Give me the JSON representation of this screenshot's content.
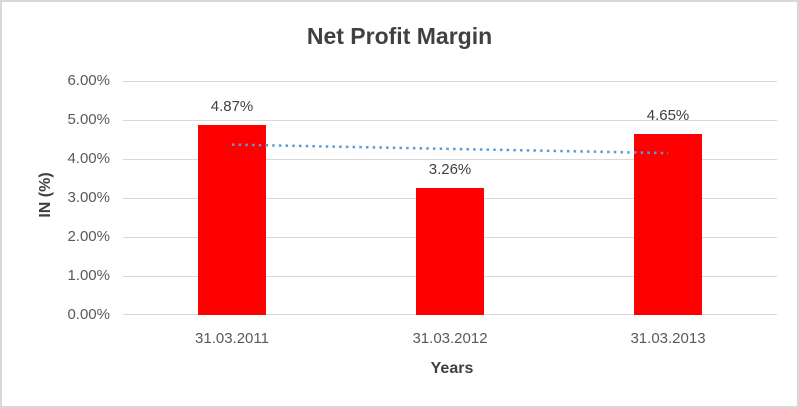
{
  "chart_data": {
    "type": "bar",
    "title": "Net Profit Margin",
    "categories": [
      "31.03.2011",
      "31.03.2012",
      "31.03.2013"
    ],
    "values": [
      4.87,
      3.26,
      4.65
    ],
    "value_labels": [
      "4.87%",
      "3.26%",
      "4.65%"
    ],
    "xlabel": "Years",
    "ylabel": "IN (%)",
    "ylim": [
      0,
      6
    ],
    "ytick_step": 1,
    "ytick_labels": [
      "6.00%",
      "5.00%",
      "4.00%",
      "3.00%",
      "2.00%",
      "1.00%",
      "0.00%"
    ],
    "grid": true,
    "legend": false,
    "bar_color": "#FF0000",
    "gridline_color": "#D9D9D9",
    "tick_text_color": "#595959",
    "title_text_color": "#404040",
    "trendline": {
      "type": "linear",
      "style": "dotted",
      "color": "#5B9BD5",
      "values": [
        4.37,
        4.26,
        4.15
      ]
    }
  }
}
